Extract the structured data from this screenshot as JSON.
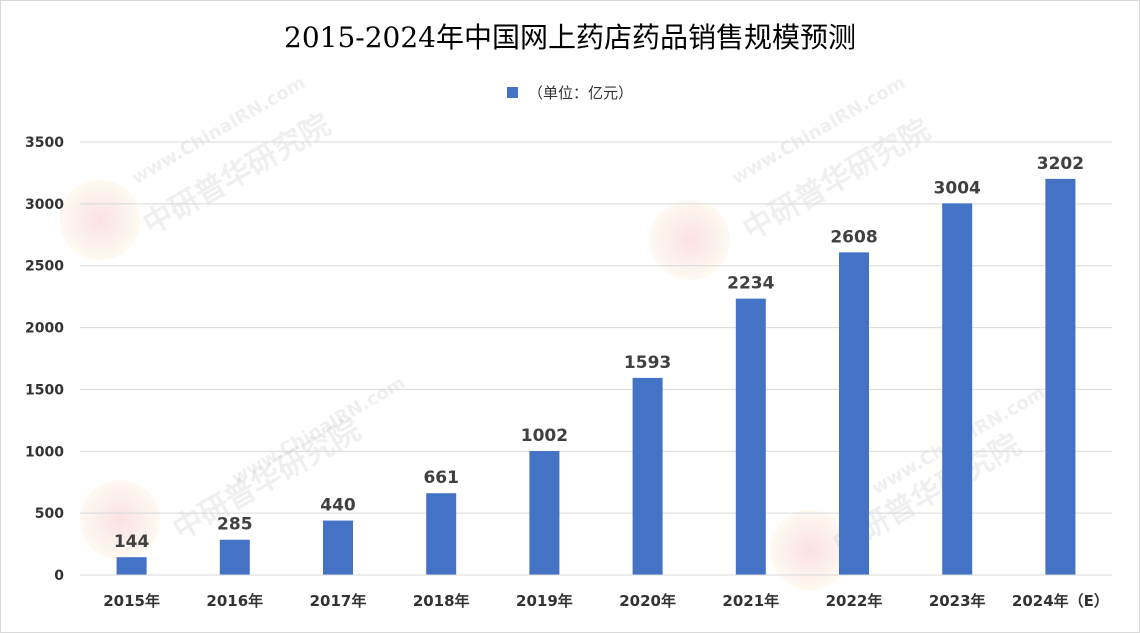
{
  "chart_data": {
    "type": "bar",
    "title": "2015-2024年中国网上药店药品销售规模预测",
    "series": [
      {
        "name": "（单位：亿元）",
        "values": [
          144,
          285,
          440,
          661,
          1002,
          1593,
          2234,
          2608,
          3004,
          3202
        ],
        "color": "#4472c4"
      }
    ],
    "categories": [
      "2015年",
      "2016年",
      "2017年",
      "2018年",
      "2019年",
      "2020年",
      "2021年",
      "2022年",
      "2023年",
      "2024年（E）"
    ],
    "data_labels": [
      "144",
      "285",
      "440",
      "661",
      "1002",
      "1593",
      "2234",
      "2608",
      "3004",
      "3202"
    ],
    "ylim": [
      0,
      3500
    ],
    "yticks": [
      "0",
      "500",
      "1000",
      "1500",
      "2000",
      "2500",
      "3000",
      "3500"
    ],
    "ytick_values": [
      0,
      500,
      1000,
      1500,
      2000,
      2500,
      3000,
      3500
    ],
    "grid": true,
    "legend_position": "top-center"
  },
  "watermark": {
    "brand": "中研普华研究院",
    "site": "www.ChinaIRN.com",
    "logo": "CIRN"
  }
}
